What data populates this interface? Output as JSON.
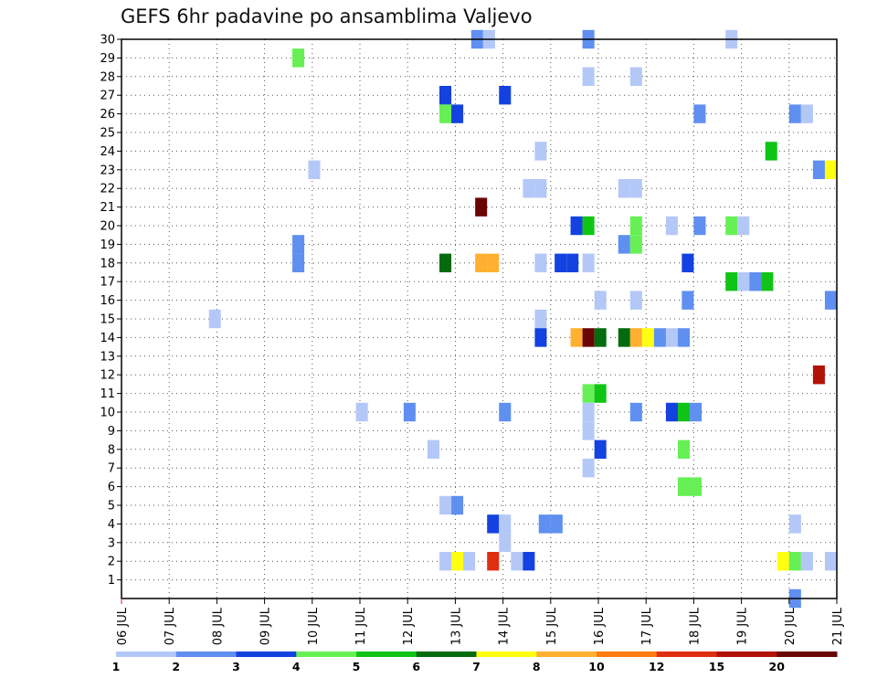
{
  "chart_data": {
    "type": "heatmap",
    "title": "GEFS 6hr padavine po ansamblima Valjevo",
    "xlabel": "",
    "ylabel": "",
    "x_ticks": [
      "06 JUL",
      "07 JUL",
      "08 JUL",
      "09 JUL",
      "10 JUL",
      "11 JUL",
      "12 JUL",
      "13 JUL",
      "14 JUL",
      "15 JUL",
      "16 JUL",
      "17 JUL",
      "18 JUL",
      "19 JUL",
      "20 JUL",
      "21 JUL"
    ],
    "y_ticks": [
      "1",
      "2",
      "3",
      "4",
      "5",
      "6",
      "7",
      "8",
      "9",
      "10",
      "11",
      "12",
      "13",
      "14",
      "15",
      "16",
      "17",
      "18",
      "19",
      "20",
      "21",
      "22",
      "23",
      "24",
      "25",
      "26",
      "27",
      "28",
      "29",
      "30"
    ],
    "xlim": [
      0,
      90
    ],
    "ylim": [
      0,
      30
    ],
    "grid": true,
    "colorbar": {
      "levels": [
        "1",
        "2",
        "3",
        "4",
        "5",
        "6",
        "7",
        "8",
        "10",
        "12",
        "15",
        "20"
      ],
      "colors": [
        "#b4c8f8",
        "#5f8ff0",
        "#1442e0",
        "#66f055",
        "#10c416",
        "#046b0e",
        "#ffff10",
        "#ffb030",
        "#ff7c10",
        "#e02e10",
        "#b31206",
        "#6a0505"
      ]
    },
    "cells": [
      {
        "t": 45.5,
        "m": 30,
        "c": 1
      },
      {
        "t": 47,
        "m": 30,
        "c": 0
      },
      {
        "t": 59.5,
        "m": 30,
        "c": 1
      },
      {
        "t": 77.5,
        "m": 30,
        "c": 0
      },
      {
        "t": 23,
        "m": 29,
        "c": 3
      },
      {
        "t": 59.5,
        "m": 28,
        "c": 0
      },
      {
        "t": 65.5,
        "m": 28,
        "c": 0
      },
      {
        "t": 41.5,
        "m": 27,
        "c": 2
      },
      {
        "t": 49,
        "m": 27,
        "c": 2
      },
      {
        "t": 41.5,
        "m": 26,
        "c": 3
      },
      {
        "t": 43,
        "m": 26,
        "c": 2
      },
      {
        "t": 73.5,
        "m": 26,
        "c": 1
      },
      {
        "t": 85.5,
        "m": 26,
        "c": 1
      },
      {
        "t": 87,
        "m": 26,
        "c": 0
      },
      {
        "t": 53.5,
        "m": 24,
        "c": 0
      },
      {
        "t": 82.5,
        "m": 24,
        "c": 4
      },
      {
        "t": 25,
        "m": 23,
        "c": 0
      },
      {
        "t": 88.5,
        "m": 23,
        "c": 1
      },
      {
        "t": 90,
        "m": 23,
        "c": 6
      },
      {
        "t": 52,
        "m": 22,
        "c": 0
      },
      {
        "t": 53.5,
        "m": 22,
        "c": 0
      },
      {
        "t": 64,
        "m": 22,
        "c": 0
      },
      {
        "t": 65.5,
        "m": 22,
        "c": 0
      },
      {
        "t": 46,
        "m": 21,
        "c": 11
      },
      {
        "t": 58,
        "m": 20,
        "c": 2
      },
      {
        "t": 59.5,
        "m": 20,
        "c": 4
      },
      {
        "t": 65.5,
        "m": 20,
        "c": 3
      },
      {
        "t": 70,
        "m": 20,
        "c": 0
      },
      {
        "t": 73.5,
        "m": 20,
        "c": 1
      },
      {
        "t": 77.5,
        "m": 20,
        "c": 3
      },
      {
        "t": 79,
        "m": 20,
        "c": 0
      },
      {
        "t": 23,
        "m": 19,
        "c": 1
      },
      {
        "t": 64,
        "m": 19,
        "c": 1
      },
      {
        "t": 65.5,
        "m": 19,
        "c": 3
      },
      {
        "t": 23,
        "m": 18,
        "c": 1
      },
      {
        "t": 41.5,
        "m": 18,
        "c": 5
      },
      {
        "t": 46,
        "m": 18,
        "c": 7
      },
      {
        "t": 47.5,
        "m": 18,
        "c": 7
      },
      {
        "t": 53.5,
        "m": 18,
        "c": 0
      },
      {
        "t": 56,
        "m": 18,
        "c": 2
      },
      {
        "t": 57.5,
        "m": 18,
        "c": 2
      },
      {
        "t": 59.5,
        "m": 18,
        "c": 0
      },
      {
        "t": 72,
        "m": 18,
        "c": 2
      },
      {
        "t": 77.5,
        "m": 17,
        "c": 4
      },
      {
        "t": 79,
        "m": 17,
        "c": 0
      },
      {
        "t": 80.5,
        "m": 17,
        "c": 1
      },
      {
        "t": 82,
        "m": 17,
        "c": 4
      },
      {
        "t": 61,
        "m": 16,
        "c": 0
      },
      {
        "t": 65.5,
        "m": 16,
        "c": 0
      },
      {
        "t": 72,
        "m": 16,
        "c": 1
      },
      {
        "t": 90,
        "m": 16,
        "c": 1
      },
      {
        "t": 12.5,
        "m": 15,
        "c": 0
      },
      {
        "t": 53.5,
        "m": 15,
        "c": 0
      },
      {
        "t": 53.5,
        "m": 14,
        "c": 2
      },
      {
        "t": 58,
        "m": 14,
        "c": 7
      },
      {
        "t": 59.5,
        "m": 14,
        "c": 11
      },
      {
        "t": 61,
        "m": 14,
        "c": 5
      },
      {
        "t": 64,
        "m": 14,
        "c": 5
      },
      {
        "t": 65.5,
        "m": 14,
        "c": 7
      },
      {
        "t": 67,
        "m": 14,
        "c": 6
      },
      {
        "t": 68.5,
        "m": 14,
        "c": 1
      },
      {
        "t": 70,
        "m": 14,
        "c": 0
      },
      {
        "t": 71.5,
        "m": 14,
        "c": 1
      },
      {
        "t": 88.5,
        "m": 12,
        "c": 10
      },
      {
        "t": 59.5,
        "m": 11,
        "c": 3
      },
      {
        "t": 61,
        "m": 11,
        "c": 4
      },
      {
        "t": 31,
        "m": 10,
        "c": 0
      },
      {
        "t": 37,
        "m": 10,
        "c": 1
      },
      {
        "t": 49,
        "m": 10,
        "c": 1
      },
      {
        "t": 59.5,
        "m": 10,
        "c": 0
      },
      {
        "t": 65.5,
        "m": 10,
        "c": 1
      },
      {
        "t": 70,
        "m": 10,
        "c": 2
      },
      {
        "t": 71.5,
        "m": 10,
        "c": 4
      },
      {
        "t": 73,
        "m": 10,
        "c": 1
      },
      {
        "t": 59.5,
        "m": 9,
        "c": 0
      },
      {
        "t": 40,
        "m": 8,
        "c": 0
      },
      {
        "t": 61,
        "m": 8,
        "c": 2
      },
      {
        "t": 71.5,
        "m": 8,
        "c": 3
      },
      {
        "t": 59.5,
        "m": 7,
        "c": 0
      },
      {
        "t": 71.5,
        "m": 6,
        "c": 3
      },
      {
        "t": 73,
        "m": 6,
        "c": 3
      },
      {
        "t": 41.5,
        "m": 5,
        "c": 0
      },
      {
        "t": 43,
        "m": 5,
        "c": 1
      },
      {
        "t": 47.5,
        "m": 4,
        "c": 2
      },
      {
        "t": 49,
        "m": 4,
        "c": 0
      },
      {
        "t": 54,
        "m": 4,
        "c": 1
      },
      {
        "t": 55.5,
        "m": 4,
        "c": 1
      },
      {
        "t": 85.5,
        "m": 4,
        "c": 0
      },
      {
        "t": 49,
        "m": 3,
        "c": 0
      },
      {
        "t": 41.5,
        "m": 2,
        "c": 0
      },
      {
        "t": 43,
        "m": 2,
        "c": 6
      },
      {
        "t": 44.5,
        "m": 2,
        "c": 0
      },
      {
        "t": 47.5,
        "m": 2,
        "c": 9
      },
      {
        "t": 50.5,
        "m": 2,
        "c": 0
      },
      {
        "t": 52,
        "m": 2,
        "c": 2
      },
      {
        "t": 84,
        "m": 2,
        "c": 6
      },
      {
        "t": 85.5,
        "m": 2,
        "c": 3
      },
      {
        "t": 87,
        "m": 2,
        "c": 0
      },
      {
        "t": 90,
        "m": 2,
        "c": 0
      },
      {
        "t": 85.5,
        "m": 0,
        "c": 1
      }
    ]
  }
}
